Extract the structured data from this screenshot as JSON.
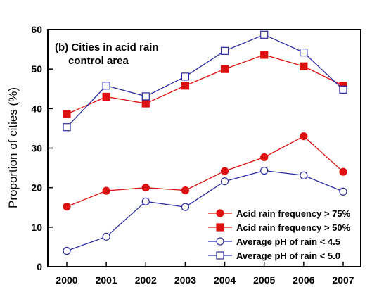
{
  "chart_data": {
    "type": "line",
    "title_lines": [
      "(b) Cities in acid rain",
      "control area"
    ],
    "xlabel": "",
    "ylabel": "Proportion of cities (%)",
    "x": [
      "2000",
      "2001",
      "2002",
      "2003",
      "2004",
      "2005",
      "2006",
      "2007"
    ],
    "ylim": [
      0,
      60
    ],
    "yticks": [
      "0",
      "10",
      "20",
      "30",
      "40",
      "50",
      "60"
    ],
    "grid": false,
    "legend_position": "bottom-right",
    "series": [
      {
        "name": "Acid rain frequency > 75%",
        "values": [
          15.2,
          19.2,
          20.0,
          19.3,
          24.2,
          27.7,
          33.0,
          24.0
        ],
        "color": "#dd1111",
        "marker": "circle",
        "filled": true
      },
      {
        "name": "Acid rain frequency > 50%",
        "values": [
          38.6,
          43.0,
          41.3,
          45.8,
          50.0,
          53.6,
          50.7,
          45.8
        ],
        "color": "#dd1111",
        "marker": "square",
        "filled": true
      },
      {
        "name": "Average pH of rain < 4.5",
        "values": [
          4.0,
          7.6,
          16.5,
          15.1,
          21.6,
          24.3,
          23.1,
          19.0
        ],
        "color": "#2a2aa0",
        "marker": "circle",
        "filled": false
      },
      {
        "name": "Average pH of rain < 5.0",
        "values": [
          35.3,
          45.8,
          43.1,
          48.1,
          54.6,
          58.7,
          54.2,
          44.8
        ],
        "color": "#2a2aa0",
        "marker": "square",
        "filled": false
      }
    ]
  }
}
